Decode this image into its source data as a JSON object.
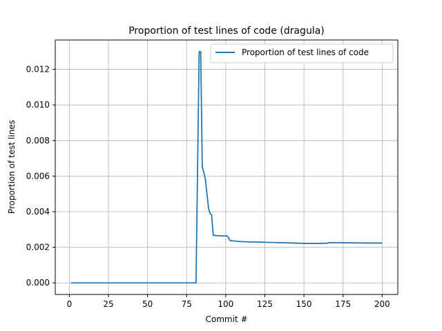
{
  "chart_data": {
    "type": "line",
    "title": "Proportion of test lines of code (dragula)",
    "xlabel": "Commit #",
    "ylabel": "Proportion of test lines",
    "xlim": [
      -9,
      210
    ],
    "ylim": [
      -0.00065,
      0.01365
    ],
    "grid": true,
    "legend_position": "top-right",
    "x_ticks": [
      0,
      25,
      50,
      75,
      100,
      125,
      150,
      175,
      200
    ],
    "y_ticks": [
      0.0,
      0.002,
      0.004,
      0.006,
      0.008,
      0.01,
      0.012
    ],
    "y_tick_labels": [
      "0.000",
      "0.002",
      "0.004",
      "0.006",
      "0.008",
      "0.010",
      "0.012"
    ],
    "series": [
      {
        "name": "Proportion of test lines of code",
        "color": "#1f77b4",
        "x": [
          1,
          80,
          81,
          82,
          83,
          84,
          85,
          86,
          87,
          88,
          89,
          90,
          91,
          92,
          95,
          98,
          101,
          102,
          103,
          106,
          110,
          115,
          120,
          125,
          130,
          140,
          150,
          160,
          165,
          166,
          170,
          180,
          190,
          200
        ],
        "y": [
          0.0,
          0.0,
          0.0,
          0.0065,
          0.013,
          0.013,
          0.0065,
          0.0062,
          0.0058,
          0.005,
          0.0042,
          0.0039,
          0.0038,
          0.00268,
          0.00265,
          0.00264,
          0.00264,
          0.0025,
          0.00237,
          0.00235,
          0.00232,
          0.0023,
          0.0023,
          0.00228,
          0.00227,
          0.00225,
          0.00222,
          0.00222,
          0.00223,
          0.00226,
          0.00226,
          0.00225,
          0.00224,
          0.00224
        ]
      }
    ]
  }
}
